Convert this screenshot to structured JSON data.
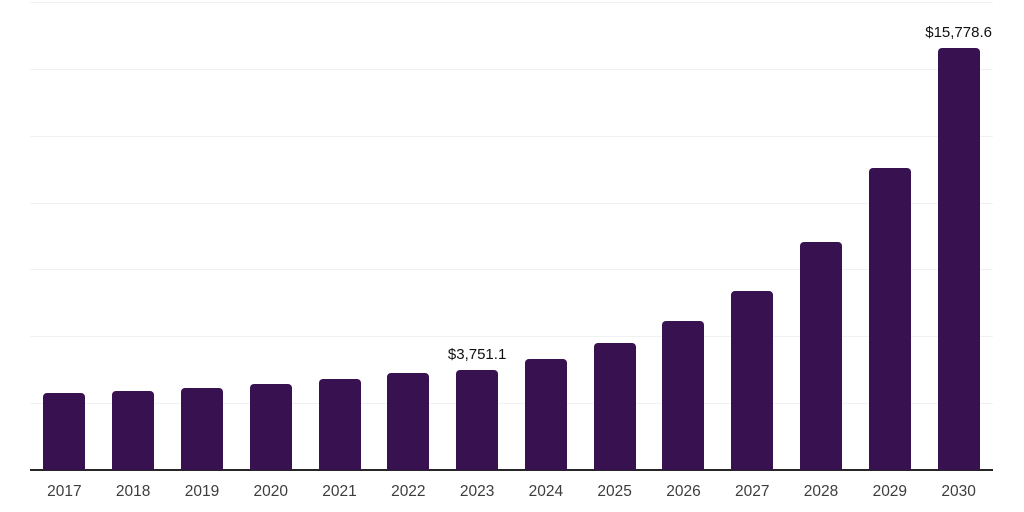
{
  "chart_data": {
    "type": "bar",
    "title": "",
    "xlabel": "",
    "ylabel": "",
    "categories": [
      "2017",
      "2018",
      "2019",
      "2020",
      "2021",
      "2022",
      "2023",
      "2024",
      "2025",
      "2026",
      "2027",
      "2028",
      "2029",
      "2030"
    ],
    "values": [
      2890,
      2965,
      3075,
      3225,
      3410,
      3640,
      3751.1,
      4160,
      4755,
      5575,
      6695,
      8525,
      11285,
      15778.6
    ],
    "value_labels": {
      "2023": "$3,751.1",
      "2030": "$15,778.6"
    },
    "ylim": [
      0,
      17500
    ],
    "gridline_step": 2500,
    "grid": "horizontal-only",
    "legend": "none",
    "colors": {
      "bar": "#371150",
      "gridline": "#f1f1f3",
      "axis_line": "#262626",
      "tick_label": "#3d3d3d",
      "value_label": "#111111",
      "background": "#ffffff"
    }
  }
}
